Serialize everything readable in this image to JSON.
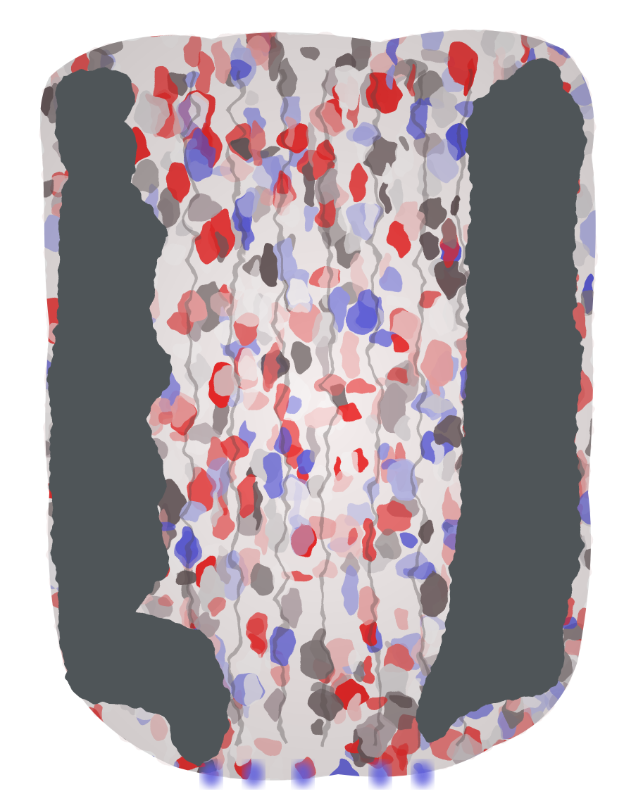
{
  "scene": {
    "subject": "",
    "colors": {
      "background": "#ffffff",
      "negative_potential": "#ee2a2a",
      "neutral_potential": "#f7f3f3",
      "positive_potential": "#5b5bdc",
      "cross_section": "#4f5559"
    }
  }
}
